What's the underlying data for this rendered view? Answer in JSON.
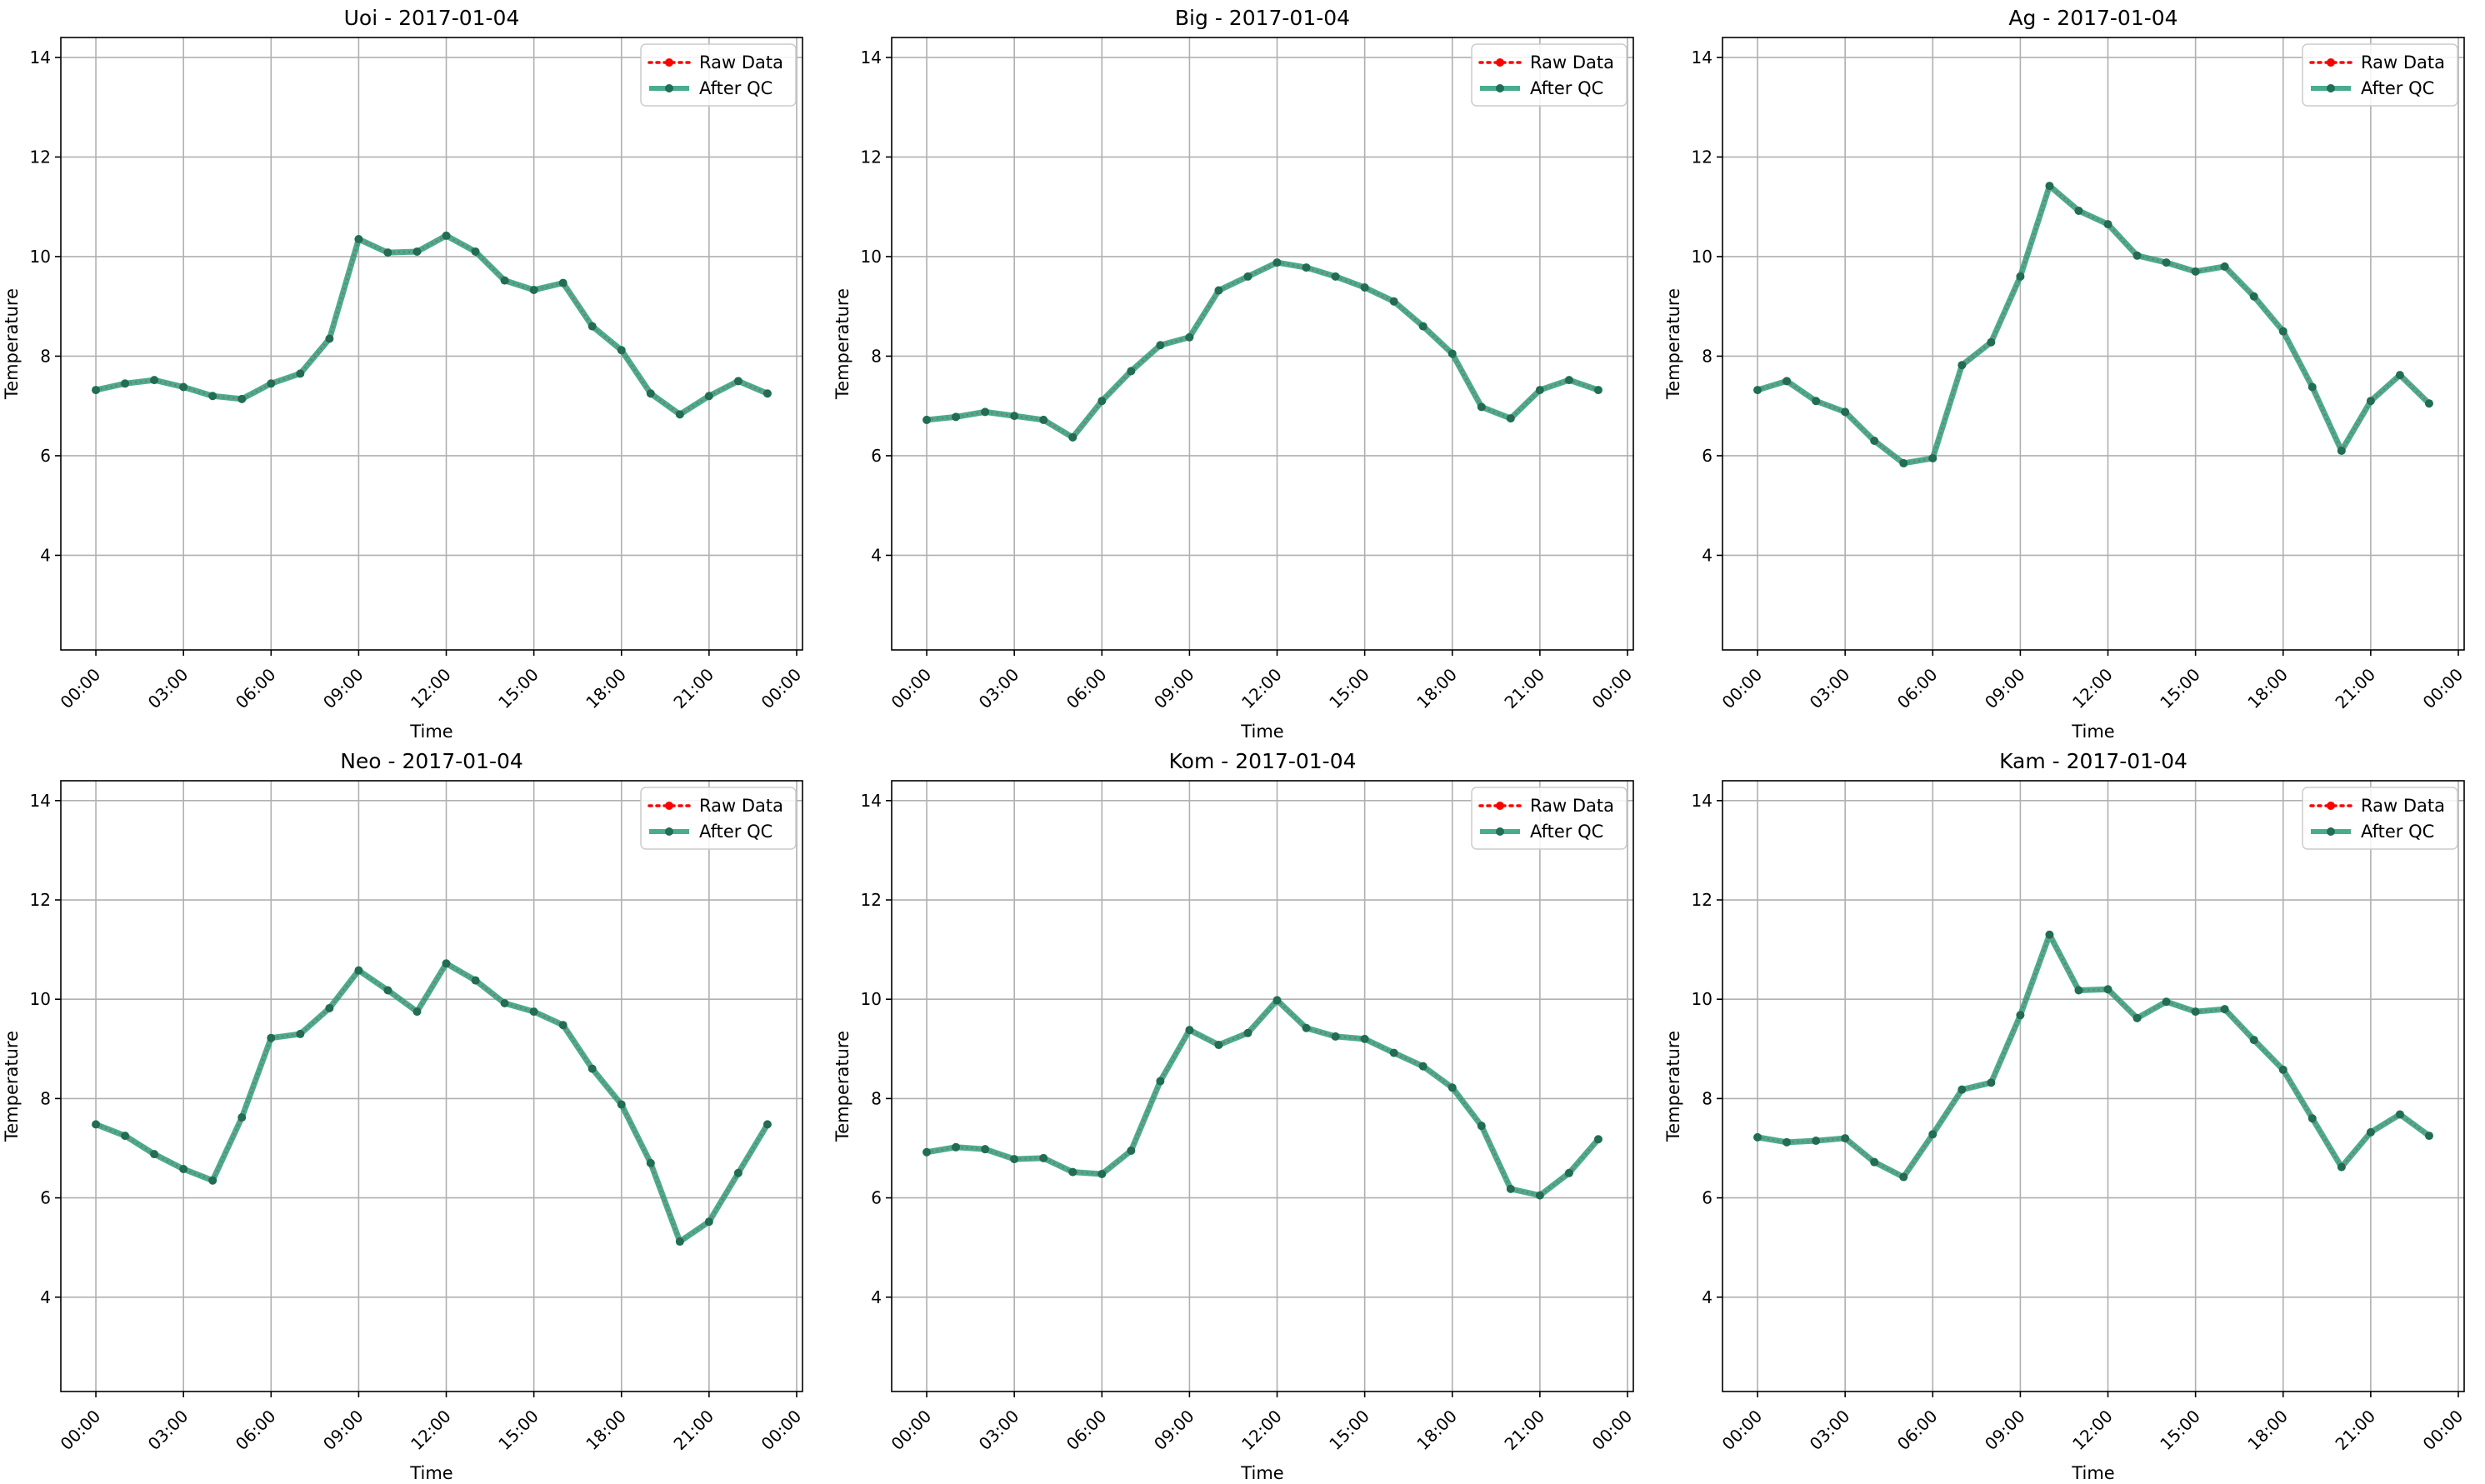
{
  "colors": {
    "raw": "#ff0000",
    "qc": "#2a9d7a",
    "qc_marker": "#1f6e55",
    "grid": "#b0b0b0"
  },
  "chart_data": [
    {
      "type": "line",
      "title": "Uoi - 2017-01-04",
      "xlabel": "Time",
      "ylabel": "Temperature",
      "x_hours": [
        0,
        1,
        2,
        3,
        4,
        5,
        6,
        7,
        8,
        9,
        10,
        11,
        12,
        13,
        14,
        15,
        16,
        17,
        18,
        19,
        20,
        21,
        22,
        23
      ],
      "xtick_labels": [
        "00:00",
        "03:00",
        "06:00",
        "09:00",
        "12:00",
        "15:00",
        "18:00",
        "21:00",
        "00:00"
      ],
      "xlim_hours": [
        -1.2,
        24.2
      ],
      "ylim": [
        2.1,
        14.4
      ],
      "yticks": [
        4,
        6,
        8,
        10,
        12,
        14
      ],
      "grid": true,
      "legend_position": "top-right",
      "series": [
        {
          "name": "Raw Data",
          "style": "dotted",
          "values": [
            7.32,
            7.45,
            7.52,
            7.38,
            7.2,
            7.14,
            7.45,
            7.65,
            8.35,
            10.35,
            10.08,
            10.1,
            10.42,
            10.1,
            9.52,
            9.33,
            9.47,
            8.6,
            8.12,
            7.25,
            6.83,
            7.2,
            7.5,
            7.25
          ]
        },
        {
          "name": "After QC",
          "style": "solid",
          "values": [
            7.32,
            7.45,
            7.52,
            7.38,
            7.2,
            7.14,
            7.45,
            7.65,
            8.35,
            10.35,
            10.08,
            10.1,
            10.42,
            10.1,
            9.52,
            9.33,
            9.47,
            8.6,
            8.12,
            7.25,
            6.83,
            7.2,
            7.5,
            7.25
          ]
        }
      ]
    },
    {
      "type": "line",
      "title": "Big - 2017-01-04",
      "xlabel": "Time",
      "ylabel": "Temperature",
      "x_hours": [
        0,
        1,
        2,
        3,
        4,
        5,
        6,
        7,
        8,
        9,
        10,
        11,
        12,
        13,
        14,
        15,
        16,
        17,
        18,
        19,
        20,
        21,
        22,
        23
      ],
      "xtick_labels": [
        "00:00",
        "03:00",
        "06:00",
        "09:00",
        "12:00",
        "15:00",
        "18:00",
        "21:00",
        "00:00"
      ],
      "xlim_hours": [
        -1.2,
        24.2
      ],
      "ylim": [
        2.1,
        14.4
      ],
      "yticks": [
        4,
        6,
        8,
        10,
        12,
        14
      ],
      "grid": true,
      "legend_position": "top-right",
      "series": [
        {
          "name": "Raw Data",
          "style": "dotted",
          "values": [
            6.72,
            6.78,
            6.88,
            6.8,
            6.72,
            6.37,
            7.1,
            7.7,
            8.22,
            8.38,
            9.32,
            9.6,
            9.88,
            9.78,
            9.6,
            9.38,
            9.1,
            8.6,
            8.05,
            6.98,
            6.75,
            7.32,
            7.52,
            7.32
          ]
        },
        {
          "name": "After QC",
          "style": "solid",
          "values": [
            6.72,
            6.78,
            6.88,
            6.8,
            6.72,
            6.37,
            7.1,
            7.7,
            8.22,
            8.38,
            9.32,
            9.6,
            9.88,
            9.78,
            9.6,
            9.38,
            9.1,
            8.6,
            8.05,
            6.98,
            6.75,
            7.32,
            7.52,
            7.32
          ]
        }
      ]
    },
    {
      "type": "line",
      "title": "Ag - 2017-01-04",
      "xlabel": "Time",
      "ylabel": "Temperature",
      "x_hours": [
        0,
        1,
        2,
        3,
        4,
        5,
        6,
        7,
        8,
        9,
        10,
        11,
        12,
        13,
        14,
        15,
        16,
        17,
        18,
        19,
        20,
        21,
        22,
        23
      ],
      "xtick_labels": [
        "00:00",
        "03:00",
        "06:00",
        "09:00",
        "12:00",
        "15:00",
        "18:00",
        "21:00",
        "00:00"
      ],
      "xlim_hours": [
        -1.2,
        24.2
      ],
      "ylim": [
        2.1,
        14.4
      ],
      "yticks": [
        4,
        6,
        8,
        10,
        12,
        14
      ],
      "grid": true,
      "legend_position": "top-right",
      "series": [
        {
          "name": "Raw Data",
          "style": "dotted",
          "values": [
            7.32,
            7.5,
            7.1,
            6.88,
            6.3,
            5.85,
            5.95,
            7.82,
            8.28,
            9.6,
            11.42,
            10.92,
            10.65,
            10.02,
            9.88,
            9.7,
            9.8,
            9.2,
            8.5,
            7.38,
            6.1,
            7.1,
            7.62,
            7.05
          ]
        },
        {
          "name": "After QC",
          "style": "solid",
          "values": [
            7.32,
            7.5,
            7.1,
            6.88,
            6.3,
            5.85,
            5.95,
            7.82,
            8.28,
            9.6,
            11.42,
            10.92,
            10.65,
            10.02,
            9.88,
            9.7,
            9.8,
            9.2,
            8.5,
            7.38,
            6.1,
            7.1,
            7.62,
            7.05
          ]
        }
      ]
    },
    {
      "type": "line",
      "title": "Neo - 2017-01-04",
      "xlabel": "Time",
      "ylabel": "Temperature",
      "x_hours": [
        0,
        1,
        2,
        3,
        4,
        5,
        6,
        7,
        8,
        9,
        10,
        11,
        12,
        13,
        14,
        15,
        16,
        17,
        18,
        19,
        20,
        21,
        22,
        23
      ],
      "xtick_labels": [
        "00:00",
        "03:00",
        "06:00",
        "09:00",
        "12:00",
        "15:00",
        "18:00",
        "21:00",
        "00:00"
      ],
      "xlim_hours": [
        -1.2,
        24.2
      ],
      "ylim": [
        2.1,
        14.4
      ],
      "yticks": [
        4,
        6,
        8,
        10,
        12,
        14
      ],
      "grid": true,
      "legend_position": "top-right",
      "series": [
        {
          "name": "Raw Data",
          "style": "dotted",
          "values": [
            7.48,
            7.25,
            6.88,
            6.58,
            6.35,
            7.62,
            9.22,
            9.3,
            9.82,
            10.58,
            10.18,
            9.75,
            10.72,
            10.38,
            9.92,
            9.75,
            9.48,
            8.6,
            7.88,
            6.7,
            5.12,
            5.52,
            6.5,
            7.48
          ]
        },
        {
          "name": "After QC",
          "style": "solid",
          "values": [
            7.48,
            7.25,
            6.88,
            6.58,
            6.35,
            7.62,
            9.22,
            9.3,
            9.82,
            10.58,
            10.18,
            9.75,
            10.72,
            10.38,
            9.92,
            9.75,
            9.48,
            8.6,
            7.88,
            6.7,
            5.12,
            5.52,
            6.5,
            7.48
          ]
        }
      ]
    },
    {
      "type": "line",
      "title": "Kom - 2017-01-04",
      "xlabel": "Time",
      "ylabel": "Temperature",
      "x_hours": [
        0,
        1,
        2,
        3,
        4,
        5,
        6,
        7,
        8,
        9,
        10,
        11,
        12,
        13,
        14,
        15,
        16,
        17,
        18,
        19,
        20,
        21,
        22,
        23
      ],
      "xtick_labels": [
        "00:00",
        "03:00",
        "06:00",
        "09:00",
        "12:00",
        "15:00",
        "18:00",
        "21:00",
        "00:00"
      ],
      "xlim_hours": [
        -1.2,
        24.2
      ],
      "ylim": [
        2.1,
        14.4
      ],
      "yticks": [
        4,
        6,
        8,
        10,
        12,
        14
      ],
      "grid": true,
      "legend_position": "top-right",
      "series": [
        {
          "name": "Raw Data",
          "style": "dotted",
          "values": [
            6.92,
            7.02,
            6.98,
            6.78,
            6.8,
            6.52,
            6.48,
            6.95,
            8.35,
            9.38,
            9.08,
            9.32,
            9.98,
            9.42,
            9.25,
            9.2,
            8.92,
            8.65,
            8.22,
            7.45,
            6.18,
            6.05,
            6.5,
            7.18
          ]
        },
        {
          "name": "After QC",
          "style": "solid",
          "values": [
            6.92,
            7.02,
            6.98,
            6.78,
            6.8,
            6.52,
            6.48,
            6.95,
            8.35,
            9.38,
            9.08,
            9.32,
            9.98,
            9.42,
            9.25,
            9.2,
            8.92,
            8.65,
            8.22,
            7.45,
            6.18,
            6.05,
            6.5,
            7.18
          ]
        }
      ]
    },
    {
      "type": "line",
      "title": "Kam - 2017-01-04",
      "xlabel": "Time",
      "ylabel": "Temperature",
      "x_hours": [
        0,
        1,
        2,
        3,
        4,
        5,
        6,
        7,
        8,
        9,
        10,
        11,
        12,
        13,
        14,
        15,
        16,
        17,
        18,
        19,
        20,
        21,
        22,
        23
      ],
      "xtick_labels": [
        "00:00",
        "03:00",
        "06:00",
        "09:00",
        "12:00",
        "15:00",
        "18:00",
        "21:00",
        "00:00"
      ],
      "xlim_hours": [
        -1.2,
        24.2
      ],
      "ylim": [
        2.1,
        14.4
      ],
      "yticks": [
        4,
        6,
        8,
        10,
        12,
        14
      ],
      "grid": true,
      "legend_position": "top-right",
      "series": [
        {
          "name": "Raw Data",
          "style": "dotted",
          "values": [
            7.22,
            7.12,
            7.15,
            7.2,
            6.72,
            6.42,
            7.28,
            8.18,
            8.32,
            9.68,
            11.3,
            10.18,
            10.2,
            9.62,
            9.95,
            9.75,
            9.8,
            9.18,
            8.58,
            7.6,
            6.62,
            7.32,
            7.68,
            7.25
          ]
        },
        {
          "name": "After QC",
          "style": "solid",
          "values": [
            7.22,
            7.12,
            7.15,
            7.2,
            6.72,
            6.42,
            7.28,
            8.18,
            8.32,
            9.68,
            11.3,
            10.18,
            10.2,
            9.62,
            9.95,
            9.75,
            9.8,
            9.18,
            8.58,
            7.6,
            6.62,
            7.32,
            7.68,
            7.25
          ]
        }
      ]
    }
  ]
}
